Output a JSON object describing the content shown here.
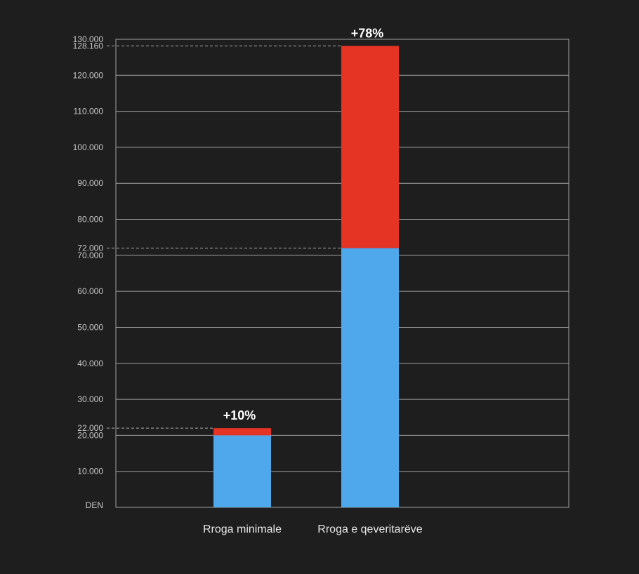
{
  "chart_data": {
    "type": "bar",
    "stacked": true,
    "categories": [
      "Rroga minimale",
      "Rroga e qeveritarëve"
    ],
    "series": [
      {
        "values": [
          20000,
          72000
        ],
        "color": "#4fa8ec"
      },
      {
        "values": [
          2000,
          56160
        ],
        "color": "#e53424"
      }
    ],
    "totals": [
      22000,
      128160
    ],
    "annotations": [
      "+10%",
      "+78%"
    ],
    "reference_values": [
      22000,
      72000,
      128160
    ],
    "reference_labels": [
      "22.000",
      "72.000",
      "128.160"
    ],
    "yticks": [
      10000,
      20000,
      30000,
      40000,
      50000,
      60000,
      70000,
      80000,
      90000,
      100000,
      110000,
      120000,
      130000
    ],
    "ytick_labels": [
      "10.000",
      "20.000",
      "30.000",
      "40.000",
      "50.000",
      "60.000",
      "70.000",
      "80.000",
      "90.000",
      "100.000",
      "110.000",
      "120.000",
      "130.000"
    ],
    "y_unit": "DEN",
    "ylim": [
      0,
      130000
    ],
    "grid": true,
    "background": "#1f1e1f",
    "grid_color": "#a0a0a0"
  }
}
